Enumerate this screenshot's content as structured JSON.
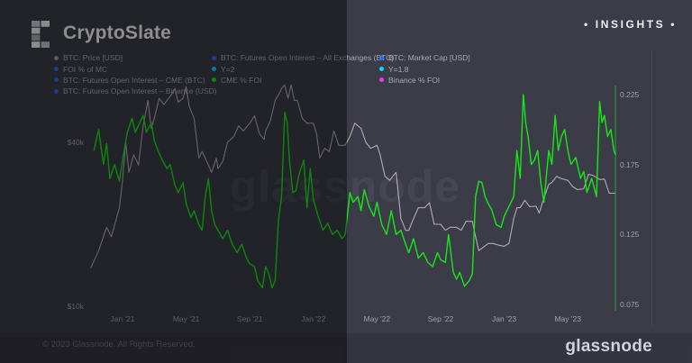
{
  "header": {
    "brand": "CryptoSlate",
    "badge": "• INSIGHTS •",
    "logo_cells": [
      {
        "c": 0,
        "r": 0,
        "color": "#c6c9d0"
      },
      {
        "c": 1,
        "r": 0,
        "color": "#eef0f3"
      },
      {
        "c": 0,
        "r": 1,
        "color": "#e9eaee"
      },
      {
        "c": 0,
        "r": 2,
        "color": "#a6aab4"
      },
      {
        "c": 0,
        "r": 3,
        "color": "#f1f2f4"
      },
      {
        "c": 1,
        "r": 3,
        "color": "#c0c3cb"
      }
    ]
  },
  "legend": {
    "columns": [
      {
        "x": 60,
        "items": [
          {
            "label": "BTC: Price [USD]",
            "dot_color": "#9a9aa4"
          },
          {
            "label": "FOI % of MC",
            "dot_color": "#2e6bff"
          },
          {
            "label": "BTC: Futures Open Interest – CME (BTC)",
            "dot_color": "#2e6bff"
          },
          {
            "label": "BTC: Futures Open Interest – Binance (USD)",
            "dot_color": "#2e6bff"
          }
        ]
      },
      {
        "x": 235,
        "items": [
          {
            "label": "BTC: Futures Open Interest – All Exchanges (BTC)",
            "dot_color": "#2e6bff"
          },
          {
            "label": "Y=2",
            "dot_color": "#00dcff"
          },
          {
            "label": "CME % FOI",
            "dot_color": "#15e817"
          }
        ]
      },
      {
        "x": 421,
        "items": [
          {
            "label": "BTC: Market Cap [USD]",
            "dot_color": "#2e6bff"
          },
          {
            "label": "Y=1.8",
            "dot_color": "#00dcff"
          },
          {
            "label": "Binance % FOI",
            "dot_color": "#f23ae6"
          }
        ]
      }
    ]
  },
  "watermark": "glassnode",
  "footer": {
    "copyright": "© 2023 Glassnode. All Rights Reserved.",
    "brand": "glassnode"
  },
  "chart_data": {
    "type": "line",
    "x_unit": "months since Nov 2020",
    "x_range_months": [
      0,
      33
    ],
    "grid": false,
    "legend_position": "top",
    "x_ticks": [
      {
        "label": "Jan '21",
        "m": 2
      },
      {
        "label": "May '21",
        "m": 6
      },
      {
        "label": "Sep '21",
        "m": 10
      },
      {
        "label": "Jan '22",
        "m": 14
      },
      {
        "label": "May '22",
        "m": 18
      },
      {
        "label": "Sep '22",
        "m": 22
      },
      {
        "label": "Jan '23",
        "m": 26
      },
      {
        "label": "May '23",
        "m": 30
      }
    ],
    "left_axis": {
      "name": "BTC: Price [USD]",
      "scale": "log",
      "ticks": [
        {
          "label": "$40k",
          "value": 40
        },
        {
          "label": "$10k",
          "value": 10
        }
      ]
    },
    "right_axis": {
      "name": "CME % FOI",
      "scale": "linear",
      "ticks": [
        {
          "label": "0.225",
          "value": 0.225
        },
        {
          "label": "0.175",
          "value": 0.175
        },
        {
          "label": "0.125",
          "value": 0.125
        },
        {
          "label": "0.075",
          "value": 0.075
        }
      ],
      "range": [
        0.075,
        0.225
      ]
    },
    "end_marker_color": "#15e817",
    "series": [
      {
        "name": "BTC: Price [USD]",
        "axis": "left",
        "color": "#b3abb1",
        "width": 1.1,
        "points": [
          [
            0,
            13.8
          ],
          [
            0.5,
            16
          ],
          [
            1,
            19.5
          ],
          [
            1.3,
            18
          ],
          [
            1.8,
            23
          ],
          [
            2,
            29
          ],
          [
            2.2,
            40
          ],
          [
            2.4,
            31
          ],
          [
            2.7,
            36
          ],
          [
            3,
            33
          ],
          [
            3.3,
            46
          ],
          [
            3.6,
            57
          ],
          [
            3.8,
            45
          ],
          [
            4,
            49
          ],
          [
            4.3,
            58
          ],
          [
            4.6,
            55
          ],
          [
            5,
            59
          ],
          [
            5.3,
            63
          ],
          [
            5.5,
            56
          ],
          [
            5.8,
            58
          ],
          [
            6,
            64
          ],
          [
            6.2,
            54
          ],
          [
            6.5,
            49
          ],
          [
            6.8,
            35
          ],
          [
            7,
            37
          ],
          [
            7.3,
            34
          ],
          [
            7.6,
            31
          ],
          [
            7.9,
            35
          ],
          [
            8,
            32
          ],
          [
            8.3,
            34
          ],
          [
            8.6,
            40
          ],
          [
            9,
            42
          ],
          [
            9.3,
            46
          ],
          [
            9.6,
            44
          ],
          [
            10,
            47
          ],
          [
            10.3,
            50
          ],
          [
            10.6,
            43
          ],
          [
            10.9,
            41
          ],
          [
            11,
            44
          ],
          [
            11.3,
            48
          ],
          [
            11.6,
            57
          ],
          [
            11.9,
            61
          ],
          [
            12,
            63
          ],
          [
            12.2,
            65
          ],
          [
            12.4,
            58
          ],
          [
            12.6,
            65
          ],
          [
            12.8,
            57
          ],
          [
            13,
            57
          ],
          [
            13.3,
            49
          ],
          [
            13.6,
            47
          ],
          [
            14,
            47
          ],
          [
            14.2,
            43
          ],
          [
            14.4,
            35
          ],
          [
            14.7,
            38
          ],
          [
            15,
            37
          ],
          [
            15.3,
            44
          ],
          [
            15.6,
            39
          ],
          [
            16,
            39
          ],
          [
            16.3,
            42
          ],
          [
            16.6,
            47
          ],
          [
            17,
            45
          ],
          [
            17.3,
            40
          ],
          [
            17.6,
            38
          ],
          [
            18,
            39
          ],
          [
            18.2,
            36
          ],
          [
            18.5,
            30
          ],
          [
            18.8,
            29
          ],
          [
            19,
            30
          ],
          [
            19.2,
            31
          ],
          [
            19.5,
            21
          ],
          [
            19.8,
            19
          ],
          [
            20,
            19
          ],
          [
            20.3,
            21
          ],
          [
            20.6,
            23
          ],
          [
            21,
            23
          ],
          [
            21.3,
            24
          ],
          [
            21.6,
            20
          ],
          [
            22,
            20
          ],
          [
            22.3,
            19
          ],
          [
            22.6,
            19.5
          ],
          [
            23,
            19.5
          ],
          [
            23.3,
            19
          ],
          [
            23.6,
            20.5
          ],
          [
            24,
            20.5
          ],
          [
            24.2,
            18
          ],
          [
            24.4,
            16
          ],
          [
            24.7,
            16.5
          ],
          [
            25,
            17
          ],
          [
            25.3,
            17
          ],
          [
            25.6,
            16.8
          ],
          [
            26,
            16.6
          ],
          [
            26.3,
            17
          ],
          [
            26.6,
            21
          ],
          [
            26.8,
            23
          ],
          [
            27,
            23
          ],
          [
            27.3,
            24.5
          ],
          [
            27.6,
            23.2
          ],
          [
            28,
            23.3
          ],
          [
            28.2,
            22
          ],
          [
            28.5,
            25
          ],
          [
            28.8,
            28
          ],
          [
            29,
            28.5
          ],
          [
            29.3,
            30
          ],
          [
            29.6,
            29.4
          ],
          [
            30,
            29
          ],
          [
            30.3,
            27.5
          ],
          [
            30.6,
            26.8
          ],
          [
            31,
            27
          ],
          [
            31.3,
            30.5
          ],
          [
            31.6,
            30.2
          ],
          [
            32,
            29.2
          ],
          [
            32.3,
            29.3
          ],
          [
            32.6,
            26
          ],
          [
            33,
            26
          ]
        ]
      },
      {
        "name": "CME % FOI",
        "axis": "right",
        "color": "#15e817",
        "width": 1.4,
        "points": [
          [
            0.2,
            0.185
          ],
          [
            0.5,
            0.2
          ],
          [
            0.8,
            0.175
          ],
          [
            1,
            0.19
          ],
          [
            1.2,
            0.165
          ],
          [
            1.5,
            0.175
          ],
          [
            1.8,
            0.163
          ],
          [
            2,
            0.178
          ],
          [
            2.3,
            0.198
          ],
          [
            2.6,
            0.208
          ],
          [
            2.8,
            0.198
          ],
          [
            3,
            0.203
          ],
          [
            3.3,
            0.21
          ],
          [
            3.5,
            0.198
          ],
          [
            3.8,
            0.205
          ],
          [
            4,
            0.192
          ],
          [
            4.3,
            0.183
          ],
          [
            4.5,
            0.178
          ],
          [
            4.8,
            0.172
          ],
          [
            5,
            0.175
          ],
          [
            5.3,
            0.16
          ],
          [
            5.5,
            0.155
          ],
          [
            5.8,
            0.162
          ],
          [
            6,
            0.147
          ],
          [
            6.3,
            0.137
          ],
          [
            6.5,
            0.142
          ],
          [
            6.8,
            0.132
          ],
          [
            7,
            0.128
          ],
          [
            7.2,
            0.152
          ],
          [
            7.4,
            0.165
          ],
          [
            7.6,
            0.142
          ],
          [
            7.8,
            0.132
          ],
          [
            8,
            0.128
          ],
          [
            8.3,
            0.122
          ],
          [
            8.6,
            0.128
          ],
          [
            8.9,
            0.118
          ],
          [
            9.2,
            0.112
          ],
          [
            9.5,
            0.118
          ],
          [
            9.8,
            0.108
          ],
          [
            10,
            0.104
          ],
          [
            10.3,
            0.102
          ],
          [
            10.5,
            0.092
          ],
          [
            10.8,
            0.087
          ],
          [
            11,
            0.102
          ],
          [
            11.2,
            0.097
          ],
          [
            11.4,
            0.087
          ],
          [
            11.6,
            0.092
          ],
          [
            11.8,
            0.135
          ],
          [
            12,
            0.152
          ],
          [
            12.2,
            0.212
          ],
          [
            12.35,
            0.205
          ],
          [
            12.5,
            0.178
          ],
          [
            12.7,
            0.155
          ],
          [
            12.9,
            0.156
          ],
          [
            13.1,
            0.168
          ],
          [
            13.4,
            0.178
          ],
          [
            13.6,
            0.144
          ],
          [
            13.8,
            0.172
          ],
          [
            14,
            0.15
          ],
          [
            14.3,
            0.138
          ],
          [
            14.6,
            0.128
          ],
          [
            14.9,
            0.133
          ],
          [
            15.2,
            0.125
          ],
          [
            15.5,
            0.128
          ],
          [
            15.8,
            0.122
          ],
          [
            16,
            0.125
          ],
          [
            16.3,
            0.155
          ],
          [
            16.5,
            0.148
          ],
          [
            16.8,
            0.152
          ],
          [
            17,
            0.142
          ],
          [
            17.2,
            0.157
          ],
          [
            17.5,
            0.145
          ],
          [
            17.8,
            0.138
          ],
          [
            18,
            0.148
          ],
          [
            18.3,
            0.132
          ],
          [
            18.6,
            0.125
          ],
          [
            18.9,
            0.142
          ],
          [
            19.2,
            0.125
          ],
          [
            19.5,
            0.128
          ],
          [
            19.8,
            0.118
          ],
          [
            20,
            0.112
          ],
          [
            20.3,
            0.122
          ],
          [
            20.6,
            0.108
          ],
          [
            20.9,
            0.112
          ],
          [
            21.2,
            0.105
          ],
          [
            21.5,
            0.102
          ],
          [
            21.8,
            0.112
          ],
          [
            22,
            0.107
          ],
          [
            22.3,
            0.105
          ],
          [
            22.5,
            0.125
          ],
          [
            22.8,
            0.098
          ],
          [
            23,
            0.093
          ],
          [
            23.2,
            0.098
          ],
          [
            23.5,
            0.088
          ],
          [
            23.8,
            0.092
          ],
          [
            24,
            0.097
          ],
          [
            24.2,
            0.152
          ],
          [
            24.4,
            0.163
          ],
          [
            24.6,
            0.162
          ],
          [
            24.8,
            0.152
          ],
          [
            25,
            0.147
          ],
          [
            25.2,
            0.143
          ],
          [
            25.5,
            0.132
          ],
          [
            25.8,
            0.13
          ],
          [
            26,
            0.138
          ],
          [
            26.3,
            0.145
          ],
          [
            26.6,
            0.152
          ],
          [
            26.8,
            0.185
          ],
          [
            27,
            0.165
          ],
          [
            27.2,
            0.225
          ],
          [
            27.35,
            0.205
          ],
          [
            27.5,
            0.195
          ],
          [
            27.7,
            0.175
          ],
          [
            27.9,
            0.178
          ],
          [
            28.1,
            0.185
          ],
          [
            28.3,
            0.162
          ],
          [
            28.5,
            0.148
          ],
          [
            28.8,
            0.185
          ],
          [
            29,
            0.175
          ],
          [
            29.2,
            0.21
          ],
          [
            29.4,
            0.185
          ],
          [
            29.6,
            0.195
          ],
          [
            29.8,
            0.2
          ],
          [
            30,
            0.185
          ],
          [
            30.2,
            0.175
          ],
          [
            30.5,
            0.18
          ],
          [
            30.8,
            0.165
          ],
          [
            31,
            0.17
          ],
          [
            31.2,
            0.155
          ],
          [
            31.5,
            0.165
          ],
          [
            31.8,
            0.152
          ],
          [
            32,
            0.22
          ],
          [
            32.15,
            0.205
          ],
          [
            32.3,
            0.21
          ],
          [
            32.5,
            0.195
          ],
          [
            32.7,
            0.2
          ],
          [
            32.9,
            0.185
          ],
          [
            33,
            0.182
          ]
        ]
      }
    ]
  }
}
